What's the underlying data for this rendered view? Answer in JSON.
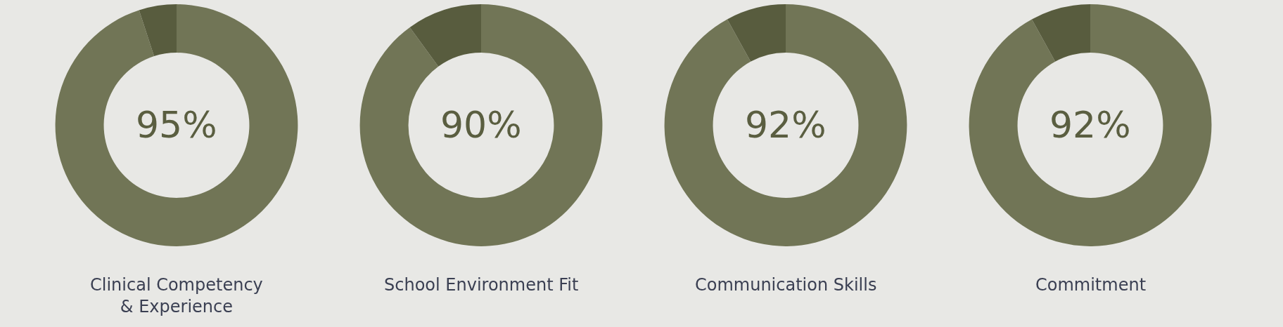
{
  "chart_data": [
    {
      "type": "donut",
      "title": "Clinical Competency\n& Experience",
      "categories": [
        null,
        null
      ],
      "values": [
        95,
        5
      ],
      "colors": [
        "#717556",
        "#585c3e"
      ],
      "value_labels": [
        "95%",
        null
      ]
    },
    {
      "type": "donut",
      "title": "School Environment Fit",
      "categories": [
        null,
        null
      ],
      "values": [
        90,
        10
      ],
      "colors": [
        "#717556",
        "#585c3e"
      ],
      "value_labels": [
        "90%",
        null
      ]
    },
    {
      "type": "donut",
      "title": "Communication Skills",
      "categories": [
        null,
        null
      ],
      "values": [
        92,
        8
      ],
      "colors": [
        "#717556",
        "#585c3e"
      ],
      "value_labels": [
        "92%",
        null
      ]
    },
    {
      "type": "donut",
      "title": "Commitment",
      "categories": [
        null,
        null
      ],
      "values": [
        92,
        8
      ],
      "colors": [
        "#717556",
        "#585c3e"
      ],
      "value_labels": [
        "92%",
        null
      ]
    }
  ]
}
